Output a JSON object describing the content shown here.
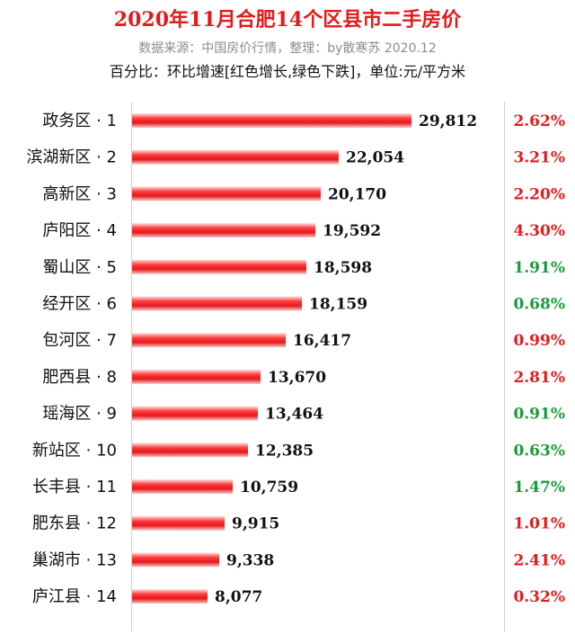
{
  "title": "2020年11月合肥14个区县市二手房价",
  "subtitle": "数据来源：中国房价行情，整理：by散寒苏 2020.12",
  "note": "百分比：环比增速[红色增长,绿色下跌]，单位:元/平方米",
  "colors": {
    "bar": "#e8262b",
    "up": "#e41a1c",
    "down": "#1a9a3a",
    "title": "#e41a1c"
  },
  "chart_data": {
    "type": "bar",
    "orientation": "horizontal",
    "title": "2020年11月合肥14个区县市二手房价",
    "categories": [
      "政务区 · 1",
      "滨湖新区 · 2",
      "高新区 · 3",
      "庐阳区 · 4",
      "蜀山区 · 5",
      "经开区 · 6",
      "包河区 · 7",
      "肥西县 · 8",
      "瑶海区 · 9",
      "新站区 · 10",
      "长丰县 · 11",
      "肥东县 · 12",
      "巢湖市 · 13",
      "庐江县 · 14"
    ],
    "values": [
      29812,
      22054,
      20170,
      19592,
      18598,
      18159,
      16417,
      13670,
      13464,
      12385,
      10759,
      9915,
      9338,
      8077
    ],
    "value_labels": [
      "29,812",
      "22,054",
      "20,170",
      "19,592",
      "18,598",
      "18,159",
      "16,417",
      "13,670",
      "13,464",
      "12,385",
      "10,759",
      "9,915",
      "9,338",
      "8,077"
    ],
    "change_labels": [
      "2.62%",
      "3.21%",
      "2.20%",
      "4.30%",
      "1.91%",
      "0.68%",
      "0.99%",
      "2.81%",
      "0.91%",
      "0.63%",
      "1.47%",
      "1.01%",
      "2.41%",
      "0.32%"
    ],
    "change_direction": [
      "up",
      "up",
      "up",
      "up",
      "down",
      "down",
      "up",
      "up",
      "down",
      "down",
      "down",
      "up",
      "up",
      "up"
    ],
    "xlim": [
      0,
      30000
    ],
    "grid": false,
    "legend": "none"
  }
}
